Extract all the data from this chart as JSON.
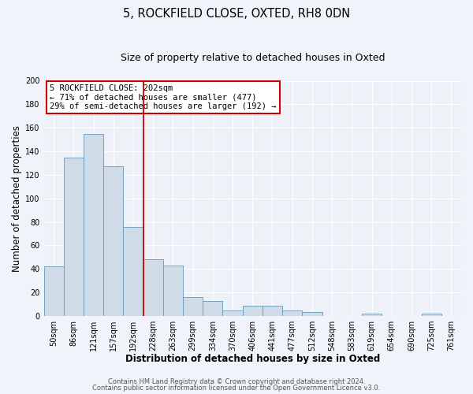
{
  "title": "5, ROCKFIELD CLOSE, OXTED, RH8 0DN",
  "subtitle": "Size of property relative to detached houses in Oxted",
  "xlabel": "Distribution of detached houses by size in Oxted",
  "ylabel": "Number of detached properties",
  "bar_labels": [
    "50sqm",
    "86sqm",
    "121sqm",
    "157sqm",
    "192sqm",
    "228sqm",
    "263sqm",
    "299sqm",
    "334sqm",
    "370sqm",
    "406sqm",
    "441sqm",
    "477sqm",
    "512sqm",
    "548sqm",
    "583sqm",
    "619sqm",
    "654sqm",
    "690sqm",
    "725sqm",
    "761sqm"
  ],
  "bar_values": [
    42,
    135,
    155,
    127,
    76,
    48,
    43,
    16,
    13,
    5,
    9,
    9,
    5,
    3,
    0,
    0,
    2,
    0,
    0,
    2,
    0
  ],
  "bar_color": "#cfdce8",
  "bar_edge_color": "#6699bb",
  "ylim": [
    0,
    200
  ],
  "yticks": [
    0,
    20,
    40,
    60,
    80,
    100,
    120,
    140,
    160,
    180,
    200
  ],
  "vline_x_idx": 4,
  "vline_color": "#cc0000",
  "annot_line1": "5 ROCKFIELD CLOSE: 202sqm",
  "annot_line2": "← 71% of detached houses are smaller (477)",
  "annot_line3": "29% of semi-detached houses are larger (192) →",
  "annotation_box_color": "#cc0000",
  "annotation_box_fill": "#ffffff",
  "footer_line1": "Contains HM Land Registry data © Crown copyright and database right 2024.",
  "footer_line2": "Contains public sector information licensed under the Open Government Licence v3.0.",
  "fig_bg_color": "#f0f4fa",
  "plot_bg_color": "#eef2f8",
  "grid_color": "#ffffff",
  "title_fontsize": 10.5,
  "subtitle_fontsize": 9,
  "axis_label_fontsize": 8.5,
  "tick_fontsize": 7,
  "annot_fontsize": 7.5,
  "footer_fontsize": 6
}
